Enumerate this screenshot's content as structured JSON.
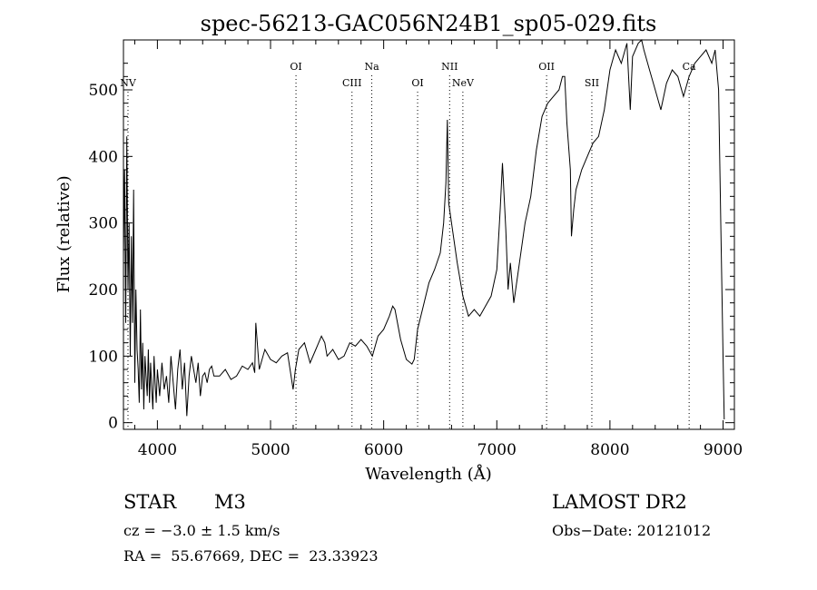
{
  "chart_data": {
    "type": "line",
    "title": "spec-56213-GAC056N24B1_sp05-029.fits",
    "xlabel": "Wavelength (Å)",
    "ylabel": "Flux (relative)",
    "xlim": [
      3700,
      9100
    ],
    "ylim": [
      -10,
      575
    ],
    "x_ticks": [
      4000,
      5000,
      6000,
      7000,
      8000,
      9000
    ],
    "y_ticks": [
      0,
      100,
      200,
      300,
      400,
      500
    ],
    "grid": false,
    "line_color": "#000000",
    "series": [
      {
        "x": [
          3700,
          3710,
          3720,
          3730,
          3740,
          3750,
          3760,
          3770,
          3780,
          3790,
          3800,
          3810,
          3820,
          3830,
          3840,
          3850,
          3860,
          3870,
          3880,
          3890,
          3900,
          3910,
          3920,
          3930,
          3940,
          3950,
          3960,
          3970,
          3980,
          3990,
          4000,
          4020,
          4040,
          4060,
          4080,
          4100,
          4120,
          4140,
          4160,
          4180,
          4200,
          4220,
          4240,
          4260,
          4280,
          4300,
          4320,
          4340,
          4360,
          4380,
          4400,
          4420,
          4440,
          4460,
          4480,
          4500,
          4550,
          4600,
          4650,
          4700,
          4750,
          4800,
          4840,
          4860,
          4870,
          4900,
          4950,
          5000,
          5050,
          5100,
          5150,
          5200,
          5220,
          5250,
          5300,
          5350,
          5400,
          5450,
          5480,
          5500,
          5550,
          5600,
          5650,
          5700,
          5750,
          5800,
          5850,
          5900,
          5950,
          6000,
          6050,
          6080,
          6100,
          6150,
          6200,
          6250,
          6270,
          6300,
          6350,
          6400,
          6450,
          6500,
          6530,
          6550,
          6563,
          6575,
          6600,
          6650,
          6700,
          6750,
          6800,
          6850,
          6900,
          6950,
          7000,
          7030,
          7050,
          7080,
          7100,
          7120,
          7150,
          7200,
          7250,
          7300,
          7350,
          7400,
          7450,
          7500,
          7550,
          7580,
          7600,
          7620,
          7650,
          7660,
          7680,
          7700,
          7750,
          7800,
          7850,
          7900,
          7950,
          8000,
          8050,
          8100,
          8150,
          8180,
          8200,
          8250,
          8280,
          8300,
          8350,
          8400,
          8450,
          8500,
          8550,
          8600,
          8650,
          8700,
          8750,
          8800,
          8850,
          8900,
          8930,
          8960,
          8980,
          9000,
          9010
        ],
        "y": [
          250,
          380,
          150,
          430,
          200,
          300,
          100,
          280,
          150,
          350,
          60,
          200,
          110,
          80,
          30,
          170,
          50,
          120,
          20,
          100,
          70,
          40,
          110,
          30,
          90,
          50,
          20,
          100,
          60,
          30,
          80,
          40,
          90,
          50,
          70,
          30,
          100,
          60,
          20,
          80,
          110,
          50,
          90,
          10,
          70,
          100,
          80,
          60,
          90,
          40,
          70,
          75,
          60,
          80,
          85,
          70,
          70,
          80,
          65,
          70,
          85,
          80,
          90,
          75,
          150,
          80,
          110,
          95,
          90,
          100,
          105,
          50,
          80,
          110,
          120,
          90,
          110,
          130,
          120,
          100,
          110,
          95,
          100,
          120,
          115,
          125,
          115,
          100,
          130,
          140,
          160,
          175,
          170,
          125,
          95,
          88,
          95,
          140,
          175,
          210,
          230,
          255,
          300,
          360,
          455,
          330,
          300,
          240,
          190,
          160,
          170,
          160,
          175,
          190,
          230,
          320,
          390,
          290,
          200,
          240,
          180,
          240,
          300,
          340,
          410,
          460,
          480,
          490,
          500,
          520,
          520,
          450,
          380,
          280,
          320,
          350,
          380,
          400,
          420,
          430,
          470,
          530,
          560,
          540,
          570,
          470,
          550,
          570,
          580,
          560,
          530,
          500,
          470,
          510,
          530,
          520,
          490,
          520,
          540,
          550,
          560,
          540,
          560,
          500,
          300,
          100,
          5
        ]
      }
    ],
    "line_labels": [
      {
        "label": "NV",
        "x": 3740
      },
      {
        "label": "OI",
        "x": 5225
      },
      {
        "label": "CIII",
        "x": 5720
      },
      {
        "label": "Na",
        "x": 5895
      },
      {
        "label": "OI",
        "x": 6300
      },
      {
        "label": "NII",
        "x": 6583
      },
      {
        "label": "NeV",
        "x": 6700
      },
      {
        "label": "OII",
        "x": 7440
      },
      {
        "label": "SII",
        "x": 7840
      },
      {
        "label": "Ca",
        "x": 8700
      }
    ]
  },
  "info": {
    "object_class": "STAR",
    "subclass": "M3",
    "redshift": "cz = −3.0 ± 1.5 km/s",
    "coordinates": "RA =  55.67669, DEC =  23.33923",
    "survey": "LAMOST DR2",
    "obs_date": "Obs−Date: 20121012"
  }
}
